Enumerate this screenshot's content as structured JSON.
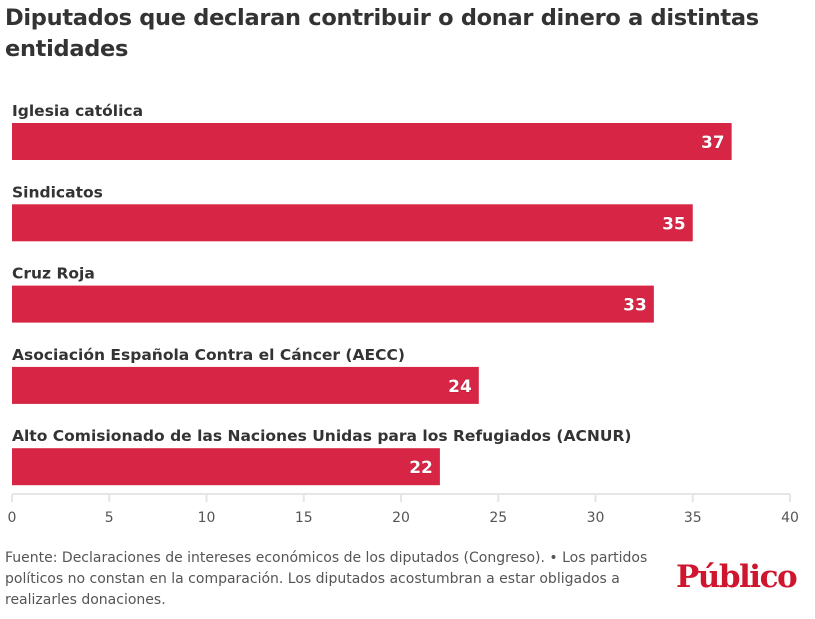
{
  "title": "Diputados que declaran contribuir o donar dinero a distintas entidades",
  "chart_data": {
    "type": "bar",
    "orientation": "horizontal",
    "title": "Diputados que declaran contribuir o donar dinero a distintas entidades",
    "categories": [
      "Iglesia católica",
      "Sindicatos",
      "Cruz Roja",
      "Asociación Española Contra el Cáncer (AECC)",
      "Alto Comisionado de las Naciones Unidas para los Refugiados (ACNUR)"
    ],
    "values": [
      37,
      35,
      33,
      24,
      22
    ],
    "xlim": [
      0,
      40
    ],
    "xticks": [
      0,
      5,
      10,
      15,
      20,
      25,
      30,
      35,
      40
    ],
    "xlabel": "",
    "ylabel": "",
    "bar_color": "#d72545",
    "grid": false
  },
  "footer": "Fuente: Declaraciones de intereses económicos de los diputados (Congreso). • Los partidos políticos no constan en la comparación. Los diputados acostumbran a estar obligados a realizarles donaciones.",
  "logo": "Público"
}
